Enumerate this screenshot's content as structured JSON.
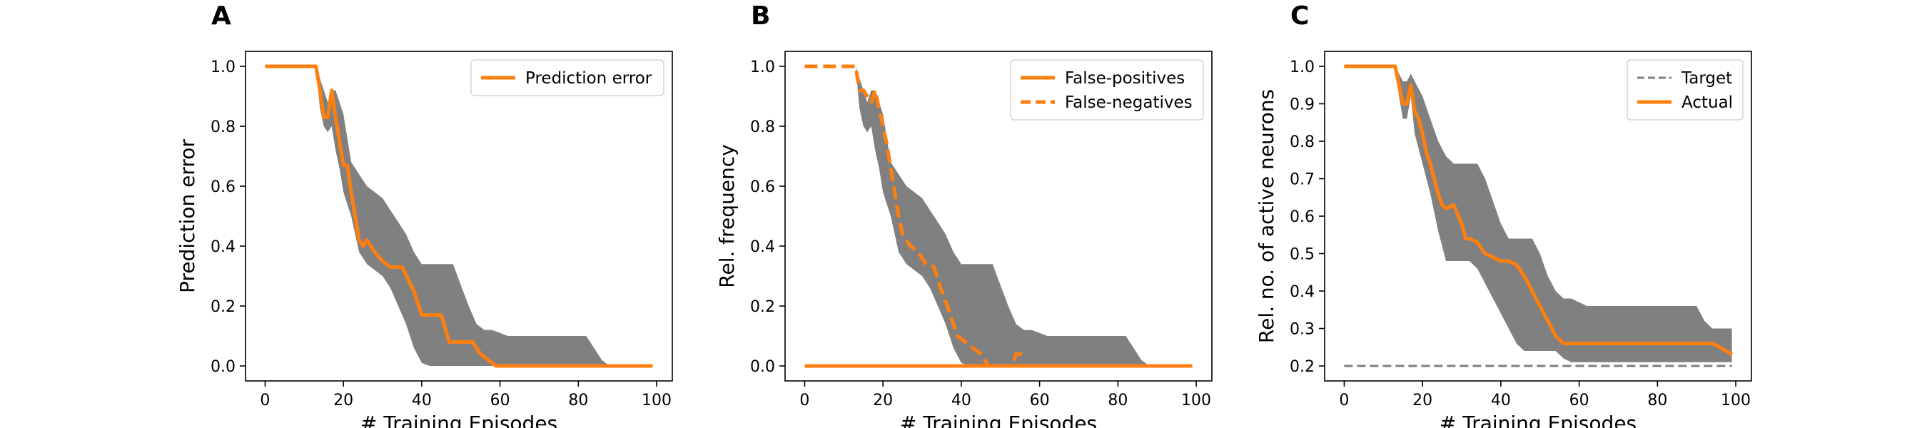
{
  "colors": {
    "accent": "#ff7f0e",
    "band": "#808080",
    "target": "#7f7f7f",
    "axis": "#000000"
  },
  "chart_data": [
    {
      "type": "line",
      "panel": "A",
      "xlabel": "# Training Episodes",
      "ylabel": "Prediction error",
      "xlim": [
        -5,
        104
      ],
      "ylim": [
        -0.05,
        1.05
      ],
      "xticks": [
        0,
        20,
        40,
        60,
        80,
        100
      ],
      "yticks": [
        0.0,
        0.2,
        0.4,
        0.6,
        0.8,
        1.0
      ],
      "grid": false,
      "legend_position": "top-right",
      "series": [
        {
          "name": "Prediction error",
          "style": "solid",
          "x": [
            0,
            13,
            14,
            15,
            16,
            17,
            18,
            19,
            20,
            21,
            22,
            23,
            24,
            25,
            26,
            27,
            28,
            30,
            32,
            35,
            38,
            40,
            42,
            45,
            47,
            50,
            53,
            55,
            57,
            59,
            60,
            70,
            80,
            90,
            99
          ],
          "y": [
            1.0,
            1.0,
            0.92,
            0.83,
            0.83,
            0.92,
            0.83,
            0.75,
            0.67,
            0.67,
            0.58,
            0.5,
            0.42,
            0.4,
            0.42,
            0.4,
            0.38,
            0.35,
            0.33,
            0.33,
            0.25,
            0.17,
            0.17,
            0.17,
            0.08,
            0.08,
            0.08,
            0.04,
            0.02,
            0.0,
            0.0,
            0.0,
            0.0,
            0.0,
            0.0
          ]
        }
      ],
      "band": {
        "x": [
          0,
          13,
          14,
          15,
          16,
          17,
          18,
          19,
          20,
          21,
          22,
          23,
          24,
          25,
          26,
          28,
          30,
          32,
          34,
          36,
          38,
          40,
          42,
          44,
          46,
          48,
          50,
          52,
          54,
          56,
          58,
          60,
          62,
          64,
          66,
          68,
          70,
          72,
          74,
          76,
          78,
          80,
          82,
          84,
          86,
          88,
          90,
          99
        ],
        "upper": [
          1.0,
          1.0,
          0.96,
          0.92,
          0.88,
          0.92,
          0.92,
          0.88,
          0.84,
          0.76,
          0.68,
          0.66,
          0.64,
          0.62,
          0.6,
          0.58,
          0.56,
          0.52,
          0.48,
          0.44,
          0.38,
          0.34,
          0.34,
          0.34,
          0.34,
          0.34,
          0.27,
          0.2,
          0.14,
          0.12,
          0.12,
          0.11,
          0.1,
          0.1,
          0.1,
          0.1,
          0.1,
          0.1,
          0.1,
          0.1,
          0.1,
          0.1,
          0.1,
          0.06,
          0.02,
          0.0,
          0.0,
          0.0
        ],
        "lower": [
          1.0,
          1.0,
          0.86,
          0.8,
          0.78,
          0.8,
          0.72,
          0.66,
          0.58,
          0.54,
          0.5,
          0.44,
          0.38,
          0.36,
          0.34,
          0.32,
          0.3,
          0.26,
          0.2,
          0.14,
          0.06,
          0.01,
          0.0,
          0.0,
          0.0,
          0.0,
          0.0,
          0.0,
          0.0,
          0.0,
          0.0,
          0.0,
          0.0,
          0.0,
          0.0,
          0.0,
          0.0,
          0.0,
          0.0,
          0.0,
          0.0,
          0.0,
          0.0,
          0.0,
          0.0,
          0.0,
          0.0,
          0.0
        ]
      }
    },
    {
      "type": "line",
      "panel": "B",
      "xlabel": "# Training Episodes",
      "ylabel": "Rel. frequency",
      "xlim": [
        -5,
        104
      ],
      "ylim": [
        -0.05,
        1.05
      ],
      "xticks": [
        0,
        20,
        40,
        60,
        80,
        100
      ],
      "yticks": [
        0.0,
        0.2,
        0.4,
        0.6,
        0.8,
        1.0
      ],
      "grid": false,
      "legend_position": "top-right",
      "series": [
        {
          "name": "False-positives",
          "style": "solid",
          "x": [
            0,
            20,
            40,
            60,
            80,
            99
          ],
          "y": [
            0.0,
            0.0,
            0.0,
            0.0,
            0.0,
            0.0
          ]
        },
        {
          "name": "False-negatives",
          "style": "dashed",
          "x": [
            0,
            13,
            14,
            15,
            16,
            17,
            18,
            19,
            20,
            21,
            22,
            23,
            24,
            25,
            27,
            29,
            31,
            33,
            35,
            37,
            39,
            41,
            43,
            45,
            47,
            48,
            50,
            53,
            54,
            55,
            57
          ],
          "y": [
            1.0,
            1.0,
            0.92,
            0.92,
            0.9,
            0.88,
            0.92,
            0.86,
            0.8,
            0.74,
            0.66,
            0.58,
            0.5,
            0.44,
            0.4,
            0.38,
            0.34,
            0.33,
            0.25,
            0.18,
            0.1,
            0.08,
            0.06,
            0.04,
            0.0,
            0.0,
            0.0,
            0.0,
            0.04,
            0.04,
            0.04
          ]
        }
      ],
      "band": {
        "x": [
          0,
          13,
          14,
          15,
          16,
          17,
          18,
          19,
          20,
          21,
          22,
          23,
          24,
          25,
          26,
          28,
          30,
          32,
          34,
          36,
          38,
          40,
          42,
          44,
          46,
          48,
          50,
          52,
          54,
          56,
          58,
          60,
          62,
          64,
          66,
          68,
          70,
          72,
          74,
          76,
          78,
          80,
          82,
          84,
          86,
          88,
          90,
          99
        ],
        "upper": [
          1.0,
          1.0,
          0.96,
          0.92,
          0.88,
          0.92,
          0.92,
          0.88,
          0.84,
          0.76,
          0.68,
          0.66,
          0.64,
          0.62,
          0.6,
          0.58,
          0.56,
          0.52,
          0.48,
          0.44,
          0.38,
          0.34,
          0.34,
          0.34,
          0.34,
          0.34,
          0.27,
          0.2,
          0.14,
          0.12,
          0.12,
          0.11,
          0.1,
          0.1,
          0.1,
          0.1,
          0.1,
          0.1,
          0.1,
          0.1,
          0.1,
          0.1,
          0.1,
          0.06,
          0.02,
          0.0,
          0.0,
          0.0
        ],
        "lower": [
          1.0,
          1.0,
          0.86,
          0.8,
          0.78,
          0.8,
          0.72,
          0.66,
          0.58,
          0.54,
          0.5,
          0.44,
          0.38,
          0.36,
          0.34,
          0.32,
          0.3,
          0.26,
          0.2,
          0.14,
          0.06,
          0.01,
          0.0,
          0.0,
          0.0,
          0.0,
          0.0,
          0.0,
          0.0,
          0.0,
          0.0,
          0.0,
          0.0,
          0.0,
          0.0,
          0.0,
          0.0,
          0.0,
          0.0,
          0.0,
          0.0,
          0.0,
          0.0,
          0.0,
          0.0,
          0.0,
          0.0,
          0.0
        ]
      }
    },
    {
      "type": "line",
      "panel": "C",
      "xlabel": "# Training Episodes",
      "ylabel": "Rel. no. of active neurons",
      "xlim": [
        -5,
        104
      ],
      "ylim": [
        0.16,
        1.04
      ],
      "xticks": [
        0,
        20,
        40,
        60,
        80,
        100
      ],
      "yticks": [
        0.2,
        0.3,
        0.4,
        0.5,
        0.6,
        0.7,
        0.8,
        0.9,
        1.0
      ],
      "grid": false,
      "legend_position": "top-right",
      "series": [
        {
          "name": "Target",
          "style": "dashed",
          "x": [
            0,
            99
          ],
          "y": [
            0.2,
            0.2
          ]
        },
        {
          "name": "Actual",
          "style": "solid",
          "x": [
            0,
            13,
            14,
            15,
            16,
            17,
            18,
            19,
            20,
            21,
            22,
            23,
            24,
            25,
            26,
            28,
            30,
            31,
            32,
            34,
            36,
            38,
            40,
            42,
            44,
            46,
            48,
            50,
            52,
            54,
            56,
            57,
            58,
            60,
            62,
            70,
            80,
            90,
            94,
            96,
            99
          ],
          "y": [
            1.0,
            1.0,
            0.95,
            0.9,
            0.9,
            0.95,
            0.88,
            0.86,
            0.82,
            0.77,
            0.74,
            0.7,
            0.66,
            0.63,
            0.62,
            0.63,
            0.58,
            0.54,
            0.54,
            0.53,
            0.5,
            0.49,
            0.48,
            0.48,
            0.47,
            0.44,
            0.4,
            0.36,
            0.32,
            0.28,
            0.26,
            0.26,
            0.26,
            0.26,
            0.26,
            0.26,
            0.26,
            0.26,
            0.26,
            0.25,
            0.23
          ]
        }
      ],
      "band": {
        "x": [
          0,
          13,
          14,
          15,
          16,
          17,
          18,
          19,
          20,
          22,
          24,
          26,
          28,
          30,
          32,
          34,
          36,
          38,
          40,
          42,
          44,
          46,
          48,
          50,
          52,
          54,
          56,
          58,
          60,
          62,
          64,
          66,
          68,
          70,
          72,
          74,
          76,
          78,
          80,
          82,
          84,
          86,
          88,
          90,
          92,
          94,
          96,
          99
        ],
        "upper": [
          1.0,
          1.0,
          0.98,
          0.96,
          0.96,
          0.98,
          0.96,
          0.94,
          0.92,
          0.86,
          0.8,
          0.76,
          0.74,
          0.74,
          0.74,
          0.74,
          0.7,
          0.64,
          0.58,
          0.54,
          0.54,
          0.54,
          0.54,
          0.5,
          0.44,
          0.4,
          0.38,
          0.38,
          0.37,
          0.36,
          0.36,
          0.36,
          0.36,
          0.36,
          0.36,
          0.36,
          0.36,
          0.36,
          0.36,
          0.36,
          0.36,
          0.36,
          0.36,
          0.36,
          0.32,
          0.3,
          0.3,
          0.3
        ],
        "lower": [
          1.0,
          1.0,
          0.92,
          0.86,
          0.86,
          0.92,
          0.82,
          0.78,
          0.74,
          0.66,
          0.56,
          0.48,
          0.48,
          0.48,
          0.48,
          0.46,
          0.42,
          0.38,
          0.34,
          0.3,
          0.26,
          0.24,
          0.24,
          0.24,
          0.24,
          0.24,
          0.22,
          0.21,
          0.21,
          0.21,
          0.21,
          0.21,
          0.21,
          0.21,
          0.21,
          0.21,
          0.21,
          0.21,
          0.21,
          0.21,
          0.21,
          0.21,
          0.21,
          0.21,
          0.21,
          0.21,
          0.21,
          0.21
        ]
      }
    }
  ]
}
